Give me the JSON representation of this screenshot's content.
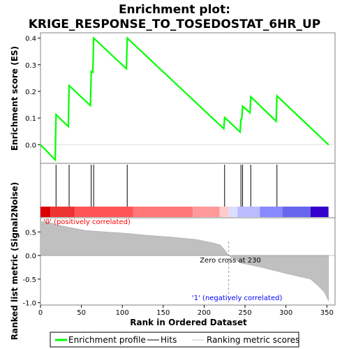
{
  "chart_data": {
    "type": "line",
    "title_line1": "Enrichment plot:",
    "title_line2": "KRIGE_RESPONSE_TO_TOSEDOSTAT_6HR_UP",
    "xlabel": "Rank in Ordered Dataset",
    "ylabel_top": "Enrichment score (ES)",
    "ylabel_bottom": "Ranked list metric (Signal2Noise)",
    "xlim": [
      0,
      360
    ],
    "x_ticks": [
      0,
      50,
      100,
      150,
      200,
      250,
      300,
      350
    ],
    "es_ylim": [
      -0.07,
      0.42
    ],
    "es_y_ticks": [
      0.0,
      0.1,
      0.2,
      0.3,
      0.4
    ],
    "es_y_tick_labels": [
      "0.0",
      "0.1",
      "0.2",
      "0.3",
      "0.4"
    ],
    "metric_ylim": [
      -1.05,
      0.8
    ],
    "metric_y_ticks": [
      0.5,
      0.0,
      -0.5,
      -1.0
    ],
    "metric_y_tick_labels": [
      "0.5",
      "0.0",
      "-0.5",
      "-1.0"
    ],
    "es_curve": [
      [
        0,
        0.0
      ],
      [
        18,
        -0.057
      ],
      [
        19,
        0.113
      ],
      [
        34,
        0.068
      ],
      [
        35,
        0.222
      ],
      [
        61,
        0.147
      ],
      [
        62,
        0.275
      ],
      [
        64,
        0.272
      ],
      [
        65,
        0.4
      ],
      [
        105,
        0.285
      ],
      [
        106,
        0.4
      ],
      [
        224,
        0.06
      ],
      [
        225,
        0.102
      ],
      [
        244,
        0.048
      ],
      [
        245,
        0.095
      ],
      [
        246,
        0.097
      ],
      [
        247,
        0.144
      ],
      [
        256,
        0.12
      ],
      [
        257,
        0.18
      ],
      [
        288,
        0.088
      ],
      [
        289,
        0.183
      ],
      [
        352,
        0.0
      ]
    ],
    "hits": [
      19,
      35,
      62,
      65,
      106,
      225,
      245,
      247,
      257,
      289
    ],
    "metric": [
      [
        0,
        0.72
      ],
      [
        10,
        0.71
      ],
      [
        20,
        0.65
      ],
      [
        40,
        0.58
      ],
      [
        55,
        0.53
      ],
      [
        80,
        0.5
      ],
      [
        105,
        0.47
      ],
      [
        130,
        0.43
      ],
      [
        160,
        0.39
      ],
      [
        190,
        0.34
      ],
      [
        210,
        0.27
      ],
      [
        220,
        0.22
      ],
      [
        226,
        0.1
      ],
      [
        230,
        0.0
      ],
      [
        245,
        -0.16
      ],
      [
        270,
        -0.25
      ],
      [
        300,
        -0.38
      ],
      [
        330,
        -0.5
      ],
      [
        340,
        -0.65
      ],
      [
        347,
        -0.78
      ],
      [
        352,
        -0.96
      ]
    ],
    "zero_cross_rank": 230,
    "zero_cross_label": "Zero cross at 230",
    "pos_label": "'0' (positively correlated)",
    "neg_label": "'1' (negatively correlated)",
    "colorbar": [
      {
        "from": 0,
        "to": 12,
        "color": "#dd0000"
      },
      {
        "from": 12,
        "to": 42,
        "color": "#ee3333"
      },
      {
        "from": 42,
        "to": 113,
        "color": "#ff5555"
      },
      {
        "from": 113,
        "to": 186,
        "color": "#ff7777"
      },
      {
        "from": 186,
        "to": 219,
        "color": "#ff9999"
      },
      {
        "from": 219,
        "to": 230,
        "color": "#ffcccc"
      },
      {
        "from": 230,
        "to": 241,
        "color": "#ddddff"
      },
      {
        "from": 241,
        "to": 268,
        "color": "#bbbbff"
      },
      {
        "from": 268,
        "to": 296,
        "color": "#8888ff"
      },
      {
        "from": 296,
        "to": 330,
        "color": "#6666ee"
      },
      {
        "from": 330,
        "to": 352,
        "color": "#3300cc"
      }
    ],
    "colors": {
      "es_line": "#00ff00",
      "hit": "#000000",
      "metric_fill": "#c0c0c0",
      "pos_label": "#ff0000",
      "neg_label": "#0000ff",
      "zero_line": "#999999"
    },
    "legend": {
      "items": [
        {
          "label": "Enrichment profile",
          "kind": "line",
          "color": "#00ff00"
        },
        {
          "label": "Hits",
          "kind": "line",
          "color": "#000000"
        },
        {
          "label": "Ranking metric scores",
          "kind": "line",
          "color": "#c0c0c0"
        }
      ],
      "placement": "bottom"
    }
  }
}
